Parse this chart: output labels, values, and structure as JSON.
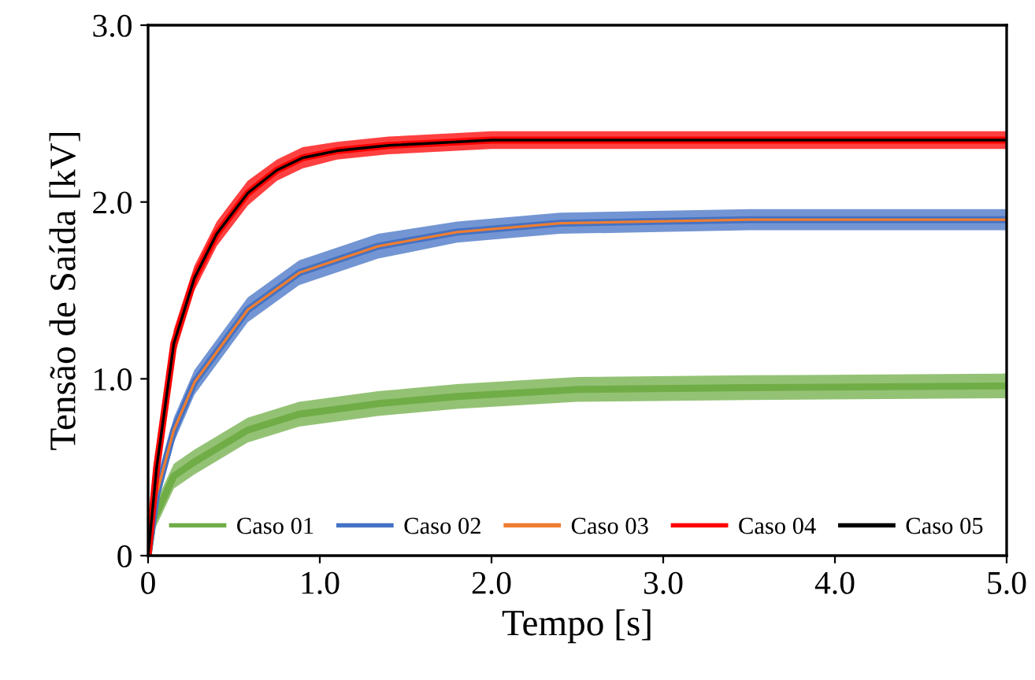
{
  "chart_data": {
    "type": "line",
    "xlabel": "Tempo [s]",
    "ylabel": "Tensão de Saída [kV]",
    "xlim": [
      0,
      5
    ],
    "ylim": [
      0,
      3
    ],
    "xticks": [
      0,
      {
        "value": 1,
        "label": "1.0"
      },
      {
        "value": 2,
        "label": "2.0"
      },
      {
        "value": 3,
        "label": "3.0"
      },
      {
        "value": 4,
        "label": "4.0"
      },
      {
        "value": 5,
        "label": "5.0"
      }
    ],
    "yticks": [
      0,
      {
        "value": 1,
        "label": "1.0"
      },
      {
        "value": 2,
        "label": "2.0"
      },
      {
        "value": 3,
        "label": "3.0"
      }
    ],
    "grid": false,
    "legend": "bottom",
    "marker": "none",
    "line_style": "solid",
    "series": [
      {
        "name": "Caso 01",
        "color": "#70ad47",
        "x": [
          0,
          0.03,
          0.15,
          0.27,
          0.58,
          0.88,
          1.34,
          1.8,
          2.5,
          3.5,
          5
        ],
        "values": [
          0,
          0.2,
          0.45,
          0.53,
          0.71,
          0.8,
          0.86,
          0.9,
          0.94,
          0.95,
          0.96
        ],
        "lower": [
          0,
          0.13,
          0.38,
          0.46,
          0.64,
          0.73,
          0.79,
          0.83,
          0.87,
          0.88,
          0.89
        ],
        "upper": [
          0.05,
          0.27,
          0.52,
          0.6,
          0.78,
          0.87,
          0.93,
          0.97,
          1.01,
          1.02,
          1.03
        ]
      },
      {
        "name": "Caso 02",
        "color": "#4472c4",
        "x": [
          0,
          0.05,
          0.15,
          0.27,
          0.58,
          0.88,
          1.34,
          1.8,
          2.4,
          3.5,
          5
        ],
        "values": [
          0,
          0.35,
          0.71,
          0.98,
          1.39,
          1.6,
          1.75,
          1.83,
          1.88,
          1.9,
          1.9
        ],
        "lower": [
          0,
          0.27,
          0.64,
          0.91,
          1.32,
          1.53,
          1.68,
          1.77,
          1.82,
          1.84,
          1.84
        ],
        "upper": [
          0.1,
          0.43,
          0.78,
          1.05,
          1.46,
          1.67,
          1.82,
          1.89,
          1.94,
          1.96,
          1.96
        ]
      },
      {
        "name": "Caso 03",
        "color": "#ed7d31",
        "x": [
          0,
          0.05,
          0.15,
          0.27,
          0.58,
          0.88,
          1.34,
          1.8,
          2.4,
          3.5,
          5
        ],
        "values": [
          0,
          0.35,
          0.71,
          0.98,
          1.39,
          1.6,
          1.75,
          1.83,
          1.88,
          1.9,
          1.9
        ]
      },
      {
        "name": "Caso 04",
        "color": "#ff0000",
        "x": [
          0,
          0.05,
          0.15,
          0.27,
          0.4,
          0.58,
          0.75,
          0.9,
          1.1,
          1.4,
          2,
          5
        ],
        "values": [
          0,
          0.5,
          1.2,
          1.57,
          1.82,
          2.05,
          2.18,
          2.25,
          2.29,
          2.32,
          2.35,
          2.35
        ],
        "lower": [
          0,
          0.42,
          1.12,
          1.5,
          1.75,
          1.98,
          2.12,
          2.19,
          2.24,
          2.27,
          2.3,
          2.3
        ],
        "upper": [
          0.1,
          0.58,
          1.28,
          1.64,
          1.89,
          2.12,
          2.24,
          2.31,
          2.34,
          2.37,
          2.4,
          2.4
        ]
      },
      {
        "name": "Caso 05",
        "color": "#000000",
        "x": [
          0,
          0.05,
          0.15,
          0.27,
          0.4,
          0.58,
          0.75,
          0.9,
          1.1,
          1.4,
          2,
          5
        ],
        "values": [
          0,
          0.5,
          1.2,
          1.57,
          1.82,
          2.05,
          2.18,
          2.25,
          2.29,
          2.32,
          2.35,
          2.35
        ]
      }
    ]
  }
}
